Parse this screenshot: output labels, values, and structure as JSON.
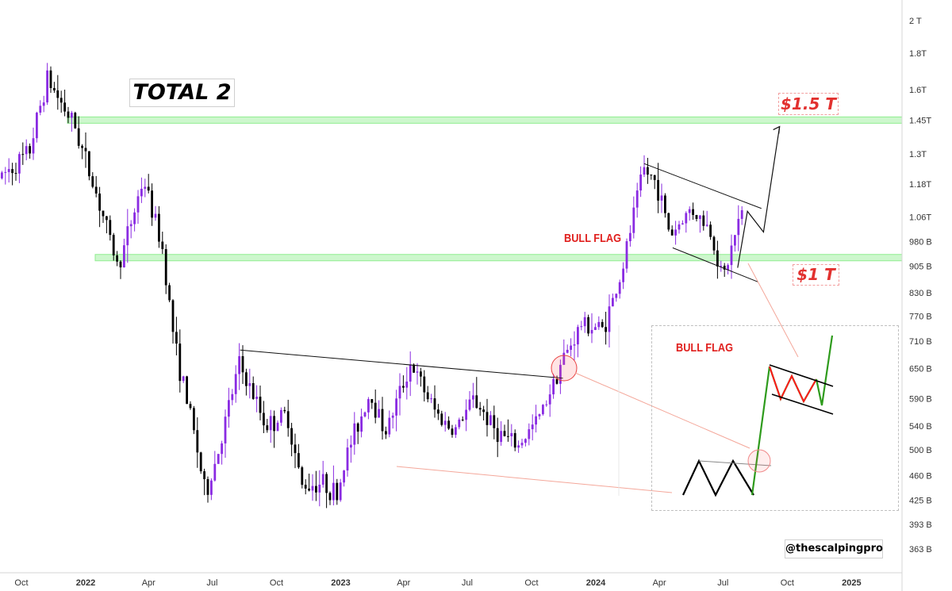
{
  "chart_data": {
    "type": "candlestick",
    "title": "TOTAL 2",
    "x_tick_labels": [
      "Oct",
      "2022",
      "Apr",
      "Jul",
      "Oct",
      "2023",
      "Apr",
      "Jul",
      "Oct",
      "2024",
      "Apr",
      "Jul",
      "Oct",
      "2025"
    ],
    "y_tick_labels": [
      "2 T",
      "1.8T",
      "1.6T",
      "1.45T",
      "1.3T",
      "1.18T",
      "1.06T",
      "980 B",
      "905 B",
      "830 B",
      "770 B",
      "710 B",
      "650 B",
      "590 B",
      "540 B",
      "500 B",
      "460 B",
      "425 B",
      "393 B",
      "363 B"
    ],
    "y_scale": "log",
    "x_range": [
      "2021-09",
      "2025-03"
    ],
    "y_range_billions": [
      340,
      2100
    ],
    "price_path": {
      "x": [
        "2021-09-01",
        "2021-10-15",
        "2021-11-10",
        "2021-12-20",
        "2022-01-25",
        "2022-02-20",
        "2022-03-28",
        "2022-04-25",
        "2022-05-12",
        "2022-06-10",
        "2022-06-25",
        "2022-07-15",
        "2022-08-12",
        "2022-09-20",
        "2022-10-20",
        "2022-11-09",
        "2022-12-10",
        "2022-12-30",
        "2023-01-15",
        "2023-02-15",
        "2023-03-10",
        "2023-04-14",
        "2023-05-20",
        "2023-06-15",
        "2023-07-14",
        "2023-08-15",
        "2023-09-15",
        "2023-10-15",
        "2023-11-15",
        "2023-12-15",
        "2024-01-15",
        "2024-02-10",
        "2024-03-12",
        "2024-04-01",
        "2024-04-20",
        "2024-05-20",
        "2024-06-15",
        "2024-07-05",
        "2024-07-30"
      ],
      "y": [
        1200,
        1300,
        1660,
        1420,
        1100,
        900,
        1200,
        950,
        700,
        520,
        430,
        505,
        660,
        540,
        560,
        445,
        450,
        432,
        500,
        600,
        530,
        660,
        565,
        530,
        590,
        530,
        505,
        555,
        660,
        750,
        740,
        880,
        1240,
        1180,
        1000,
        1090,
        1020,
        870,
        1070
      ]
    },
    "annotations": {
      "levels": [
        {
          "label": "$1.5 T",
          "value_billions": 1450
        },
        {
          "label": "$1 T",
          "value_billions": 930
        }
      ],
      "pattern_label": "BULL FLAG",
      "inset_label": "BULL FLAG",
      "resistance_line": {
        "x": [
          "2022-08-10",
          "2023-11-15"
        ],
        "y": [
          690,
          630
        ]
      },
      "flag_channel": {
        "upper": {
          "x": [
            "2024-03-10",
            "2024-08-25"
          ],
          "y": [
            1260,
            1090
          ]
        },
        "lower": {
          "x": [
            "2024-04-20",
            "2024-08-20"
          ],
          "y": [
            960,
            860
          ]
        }
      },
      "projection": {
        "x": [
          "2024-07-22",
          "2024-08-05",
          "2024-08-28",
          "2024-09-20"
        ],
        "y": [
          900,
          1080,
          1010,
          1420
        ]
      }
    },
    "watermark": "@thescalpingpro",
    "grid": false,
    "legend": "none"
  },
  "colors": {
    "candle_up": "#8a2be2",
    "candle_down": "#000000",
    "level_zone": "#90ee90",
    "label_red": "#e0201e",
    "flag_red": "#ff1a1a",
    "flag_green": "#2e9b1c"
  }
}
